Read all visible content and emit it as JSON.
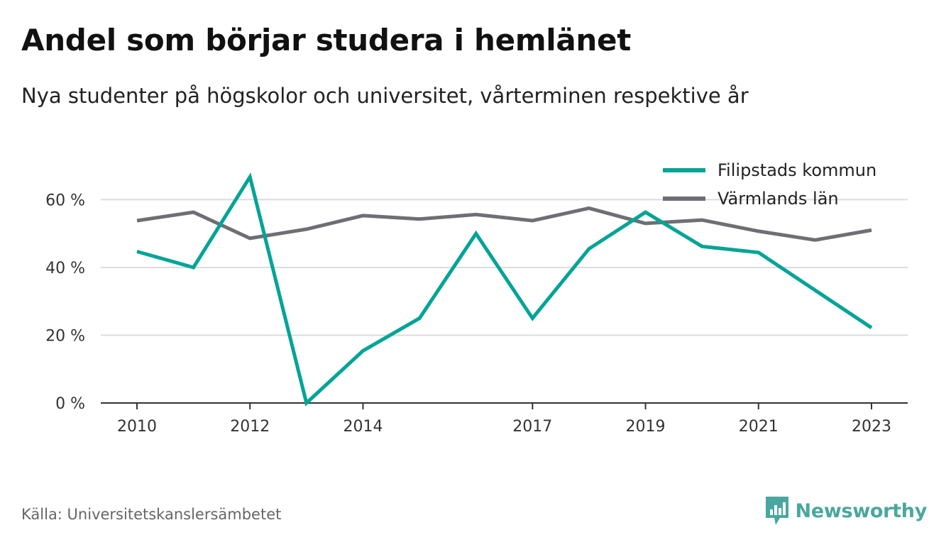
{
  "title": "Andel som börjar studera i hemlänet",
  "subtitle": "Nya studenter på högskolor och universitet, vårterminen respektive år",
  "source": "Källa: Universitetskanslersämbetet",
  "brand": {
    "name": "Newsworthy",
    "icon": "newsworthy-logo-icon",
    "color": "#4aa79f"
  },
  "chart_data": {
    "type": "line",
    "x": [
      2010,
      2011,
      2012,
      2013,
      2014,
      2015,
      2016,
      2017,
      2018,
      2019,
      2020,
      2021,
      2022,
      2023
    ],
    "x_ticks": [
      2010,
      2012,
      2014,
      2017,
      2019,
      2021,
      2023
    ],
    "x_tick_labels": [
      "2010",
      "2012",
      "2014",
      "2017",
      "2019",
      "2021",
      "2023"
    ],
    "y_ticks": [
      0,
      20,
      40,
      60
    ],
    "y_tick_labels": [
      "0 %",
      "20 %",
      "40 %",
      "60 %"
    ],
    "ylim": [
      0,
      67
    ],
    "grid": true,
    "legend_position": "top-right",
    "series": [
      {
        "name": "Filipstads kommun",
        "color": "#00a496",
        "values": [
          44.7,
          40.0,
          66.7,
          0.0,
          15.4,
          25.0,
          50.0,
          25.0,
          45.5,
          56.3,
          46.2,
          44.4,
          33.3,
          22.2
        ]
      },
      {
        "name": "Värmlands län",
        "color": "#6f6e75",
        "values": [
          53.8,
          56.3,
          48.6,
          51.3,
          55.3,
          54.3,
          55.6,
          53.8,
          57.5,
          53.0,
          54.0,
          50.7,
          48.1,
          51.0
        ]
      }
    ]
  }
}
